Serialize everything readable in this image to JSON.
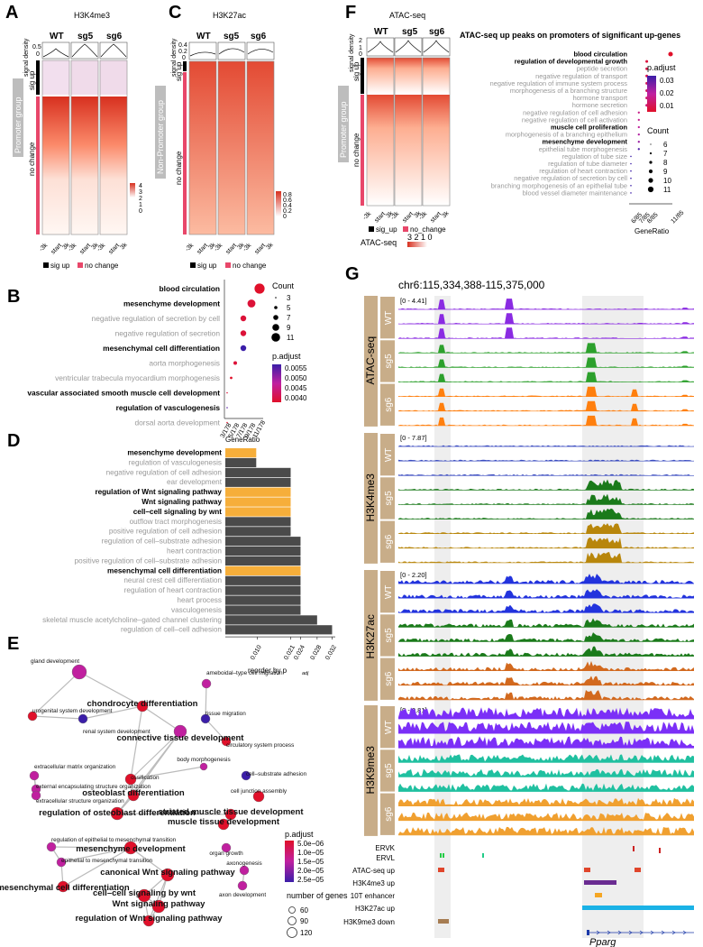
{
  "panels": {
    "A": {
      "letter": "A",
      "title": "H3K4me3",
      "samples": [
        "WT",
        "sg5",
        "sg6"
      ],
      "yaxis": "signal density",
      "ticks": [
        "0.5",
        "0"
      ],
      "group": "Promoter group",
      "sig_up": "sig up",
      "no_change": "no change",
      "colorbar": [
        "4",
        "3",
        "2",
        "1",
        "0"
      ],
      "xticks": [
        "-3k",
        "start",
        "3k"
      ],
      "legend_sig": "sig up",
      "legend_nc": "no change"
    },
    "C": {
      "letter": "C",
      "title": "H3K27ac",
      "samples": [
        "WT",
        "sg5",
        "sg6"
      ],
      "yaxis": "signal density",
      "ticks": [
        "0.4",
        "0.2",
        "0"
      ],
      "group": "Non-Promoter group",
      "sig_up": "sig up",
      "no_change": "no change",
      "colorbar": [
        "0.8",
        "0.6",
        "0.4",
        "0.2",
        "0"
      ],
      "xticks": [
        "-3k",
        "start",
        "3k"
      ],
      "legend_sig": "sig up",
      "legend_nc": "no change"
    },
    "F": {
      "letter": "F",
      "title": "ATAC-seq",
      "samples": [
        "WT",
        "sg5",
        "sg6"
      ],
      "yaxis": "signal density",
      "ticks": [
        "2",
        "1",
        "0"
      ],
      "group": "Promoter group",
      "sig_up": "sig up",
      "no_change": "no change",
      "xticks": [
        "-3k",
        "start",
        "3k"
      ],
      "legend_sig": "sig_up",
      "legend_nc": "no_change",
      "cb_label": "ATAC-seq",
      "cb_ticks": "3 2 1 0"
    },
    "B": {
      "letter": "B"
    },
    "D": {
      "letter": "D"
    },
    "E": {
      "letter": "E"
    },
    "G": {
      "letter": "G"
    }
  },
  "chart_data": [
    {
      "id": "F_dot",
      "type": "scatter",
      "title": "ATAC-seq up peaks on promoters of significant up-genes",
      "xlabel": "GeneRatio",
      "xticks": [
        "6/85",
        "7/85",
        "8/85",
        "11/85"
      ],
      "terms": [
        {
          "label": "blood circulation",
          "ratio": 11,
          "bold": true,
          "count": 11,
          "padj": 0.01
        },
        {
          "label": "regulation of developmental growth",
          "ratio": 8,
          "bold": true,
          "count": 8,
          "padj": 0.012
        },
        {
          "label": "peptide secretion",
          "ratio": 8,
          "bold": false,
          "count": 8,
          "padj": 0.013
        },
        {
          "label": "negative regulation of transport",
          "ratio": 8,
          "bold": false,
          "count": 8,
          "padj": 0.014
        },
        {
          "label": "negative regulation of immune system process",
          "ratio": 8,
          "bold": false,
          "count": 8,
          "padj": 0.015
        },
        {
          "label": "morphogenesis of a branching structure",
          "ratio": 8,
          "bold": false,
          "count": 8,
          "padj": 0.016
        },
        {
          "label": "hormone transport",
          "ratio": 8,
          "bold": false,
          "count": 8,
          "padj": 0.017
        },
        {
          "label": "hormone secretion",
          "ratio": 8,
          "bold": false,
          "count": 8,
          "padj": 0.018
        },
        {
          "label": "negative regulation of cell adhesion",
          "ratio": 7,
          "bold": false,
          "count": 7,
          "padj": 0.02
        },
        {
          "label": "negative regulation of cell activation",
          "ratio": 7,
          "bold": false,
          "count": 7,
          "padj": 0.021
        },
        {
          "label": "muscle cell proliferation",
          "ratio": 7,
          "bold": true,
          "count": 7,
          "padj": 0.022
        },
        {
          "label": "morphogenesis of a branching epithelium",
          "ratio": 7,
          "bold": false,
          "count": 7,
          "padj": 0.024
        },
        {
          "label": "mesenchyme development",
          "ratio": 7,
          "bold": true,
          "count": 7,
          "padj": 0.026
        },
        {
          "label": "epithelial tube morphogenesis",
          "ratio": 7,
          "bold": false,
          "count": 7,
          "padj": 0.033
        },
        {
          "label": "regulation of tube size",
          "ratio": 6,
          "bold": false,
          "count": 6,
          "padj": 0.035
        },
        {
          "label": "regulation of tube diameter",
          "ratio": 6,
          "bold": false,
          "count": 6,
          "padj": 0.035
        },
        {
          "label": "regulation of heart contraction",
          "ratio": 6,
          "bold": false,
          "count": 6,
          "padj": 0.035
        },
        {
          "label": "negative regulation of secretion by cell",
          "ratio": 6,
          "bold": false,
          "count": 6,
          "padj": 0.035
        },
        {
          "label": "branching morphogenesis of an epithelial tube",
          "ratio": 6,
          "bold": false,
          "count": 6,
          "padj": 0.035
        },
        {
          "label": "blood vessel diameter maintenance",
          "ratio": 6,
          "bold": false,
          "count": 6,
          "padj": 0.035
        }
      ],
      "legend_padj_title": "p.adjust",
      "legend_padj": [
        "0.03",
        "0.02",
        "0.01"
      ],
      "legend_count_title": "Count",
      "legend_count": [
        "6",
        "7",
        "8",
        "9",
        "10",
        "11"
      ]
    },
    {
      "id": "B_dot",
      "type": "scatter",
      "xlabel": "GeneRatio",
      "xticks": [
        "3/178",
        "5/178",
        "7/178",
        "9/178",
        "11/178"
      ],
      "terms": [
        {
          "label": "blood circulation",
          "ratio": 11,
          "bold": true,
          "count": 11,
          "padj": 0.004
        },
        {
          "label": "mesenchyme development",
          "ratio": 9,
          "bold": true,
          "count": 9,
          "padj": 0.0041
        },
        {
          "label": "negative regulation of secretion by cell",
          "ratio": 7,
          "bold": false,
          "count": 7,
          "padj": 0.0041
        },
        {
          "label": "negative regulation of secretion",
          "ratio": 7,
          "bold": false,
          "count": 7,
          "padj": 0.0041
        },
        {
          "label": "mesenchymal cell differentiation",
          "ratio": 7,
          "bold": true,
          "count": 7,
          "padj": 0.0057
        },
        {
          "label": "aorta morphogenesis",
          "ratio": 5,
          "bold": false,
          "count": 5,
          "padj": 0.0041
        },
        {
          "label": "ventricular trabecula myocardium morphogenesis",
          "ratio": 4,
          "bold": false,
          "count": 4,
          "padj": 0.004
        },
        {
          "label": "vascular associated smooth muscle cell development",
          "ratio": 3,
          "bold": true,
          "count": 3,
          "padj": 0.0041
        },
        {
          "label": "regulation of vasculogenesis",
          "ratio": 3,
          "bold": true,
          "count": 3,
          "padj": 0.0055
        },
        {
          "label": "dorsal aorta development",
          "ratio": 3,
          "bold": false,
          "count": 3,
          "padj": 0.004
        }
      ],
      "legend_count_title": "Count",
      "legend_count": [
        "3",
        "5",
        "7",
        "9",
        "11"
      ],
      "legend_padj_title": "p.adjust",
      "legend_padj": [
        "0.0055",
        "0.0050",
        "0.0045",
        "0.0040"
      ]
    },
    {
      "id": "D_bar",
      "type": "bar",
      "xlabel": "reorder by p",
      "xlabel_sub": "adj",
      "xticks": [
        "0.010",
        "0.021",
        "0.024",
        "0.028",
        "0.032"
      ],
      "xrange": [
        0,
        0.0345
      ],
      "bars": [
        {
          "label": "mesenchyme development",
          "value": 0.0097,
          "highlight": true
        },
        {
          "label": "regulation of vasculogenesis",
          "value": 0.0097,
          "highlight": false
        },
        {
          "label": "negative regulation of cell adhesion",
          "value": 0.0205,
          "highlight": false
        },
        {
          "label": "ear development",
          "value": 0.0205,
          "highlight": false
        },
        {
          "label": "regulation of Wnt signaling pathway",
          "value": 0.0205,
          "highlight": true
        },
        {
          "label": "Wnt signaling pathway",
          "value": 0.0205,
          "highlight": true
        },
        {
          "label": "cell–cell signaling by wnt",
          "value": 0.0205,
          "highlight": true
        },
        {
          "label": "outflow tract morphogenesis",
          "value": 0.0205,
          "highlight": false
        },
        {
          "label": "positive regulation of cell adhesion",
          "value": 0.0205,
          "highlight": false
        },
        {
          "label": "regulation of cell–substrate adhesion",
          "value": 0.0236,
          "highlight": false
        },
        {
          "label": "heart contraction",
          "value": 0.0236,
          "highlight": false
        },
        {
          "label": "positive regulation of cell–substrate adhesion",
          "value": 0.0236,
          "highlight": false
        },
        {
          "label": "mesenchymal cell differentiation",
          "value": 0.0236,
          "highlight": true
        },
        {
          "label": "neural crest cell differentiation",
          "value": 0.0236,
          "highlight": false
        },
        {
          "label": "regulation of heart contraction",
          "value": 0.0236,
          "highlight": false
        },
        {
          "label": "heart process",
          "value": 0.0236,
          "highlight": false
        },
        {
          "label": "vasculogenesis",
          "value": 0.0236,
          "highlight": false
        },
        {
          "label": "skeletal muscle acetylcholine–gated channel clustering",
          "value": 0.0288,
          "highlight": false
        },
        {
          "label": "regulation of cell–cell adhesion",
          "value": 0.0335,
          "highlight": false
        }
      ],
      "colors": {
        "highlight": "#f6ae3a",
        "normal": "#4a4a4a"
      }
    },
    {
      "id": "E_network",
      "type": "scatter",
      "nodes": [
        {
          "label": "gland development",
          "bold": false
        },
        {
          "label": "chondrocyte differentiation",
          "bold": true
        },
        {
          "label": "ameboidal–type cell migration",
          "bold": false
        },
        {
          "label": "urogenital system development",
          "bold": false
        },
        {
          "label": "renal system development",
          "bold": false
        },
        {
          "label": "tissue migration",
          "bold": false
        },
        {
          "label": "connective tissue development",
          "bold": true
        },
        {
          "label": "circulatory system process",
          "bold": false
        },
        {
          "label": "body morphogenesis",
          "bold": false
        },
        {
          "label": "extracellular matrix organization",
          "bold": false
        },
        {
          "label": "external encapsulating structure organization",
          "bold": false
        },
        {
          "label": "ossification",
          "bold": false
        },
        {
          "label": "cell–substrate adhesion",
          "bold": false
        },
        {
          "label": "extracellular structure organization",
          "bold": false
        },
        {
          "label": "osteoblast differentiation",
          "bold": true
        },
        {
          "label": "cell junction assembly",
          "bold": false
        },
        {
          "label": "regulation of osteoblast differentiation",
          "bold": true
        },
        {
          "label": "striated muscle tissue development",
          "bold": true
        },
        {
          "label": "muscle tissue development",
          "bold": true
        },
        {
          "label": "regulation of epithelial to mesenchymal transition",
          "bold": false
        },
        {
          "label": "mesenchyme development",
          "bold": true
        },
        {
          "label": "organ growth",
          "bold": false
        },
        {
          "label": "epithelial to mesenchymal transition",
          "bold": false
        },
        {
          "label": "axonogenesis",
          "bold": false
        },
        {
          "label": "canonical Wnt signaling pathway",
          "bold": true
        },
        {
          "label": "mesenchymal cell differentiation",
          "bold": true
        },
        {
          "label": "axon development",
          "bold": false
        },
        {
          "label": "cell–cell signaling by wnt",
          "bold": true
        },
        {
          "label": "Wnt signaling pathway",
          "bold": true
        },
        {
          "label": "regulation of Wnt signaling pathway",
          "bold": true
        }
      ],
      "legend_padj_title": "p.adjust",
      "legend_padj": [
        "5.0e−06",
        "1.0e−05",
        "1.5e−05",
        "2.0e−05",
        "2.5e−05"
      ],
      "legend_size_title": "number of genes",
      "legend_size": [
        "60",
        "90",
        "120"
      ]
    },
    {
      "id": "G_tracks",
      "type": "area",
      "locus": "chr6:115,334,388-115,375,000",
      "groups": [
        {
          "name": "ATAC-seq",
          "range": "[0 - 4.41]",
          "samples": [
            "WT",
            "sg5",
            "sg6"
          ],
          "colors": [
            "#8a2be2",
            "#2ca02c",
            "#ff7f0e"
          ]
        },
        {
          "name": "H3K4me3",
          "range": "[0 - 7.87]",
          "samples": [
            "WT",
            "sg5",
            "sg6"
          ],
          "colors": [
            "#3b4cc0",
            "#1a7a1a",
            "#b8860b"
          ]
        },
        {
          "name": "H3K27ac",
          "range": "[0 - 2.20]",
          "samples": [
            "WT",
            "sg5",
            "sg6"
          ],
          "colors": [
            "#2233dd",
            "#1a7a1a",
            "#d2691e"
          ]
        },
        {
          "name": "H3K9me3",
          "range": "[0 - 0.81]",
          "samples": [
            "WT",
            "sg5",
            "sg6"
          ],
          "colors": [
            "#7b2ff7",
            "#20c0a0",
            "#f0a030"
          ]
        }
      ],
      "features": [
        "ERVK",
        "ERVL",
        "ATAC-seq up",
        "H3K4me3 up",
        "10T enhancer",
        "H3K27ac up",
        "H3K9me3 down"
      ],
      "gene": "Pparg"
    }
  ]
}
